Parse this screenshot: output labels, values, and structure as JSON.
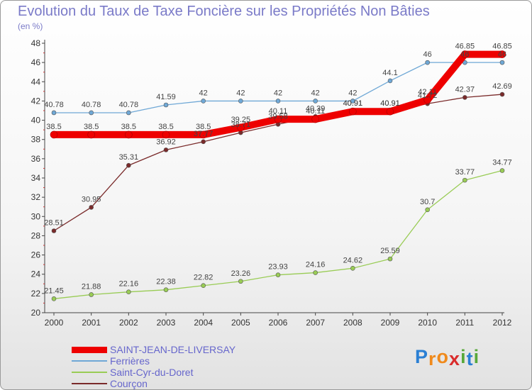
{
  "chart_data": {
    "type": "line",
    "title": "Evolution du Taux de Taxe Foncière sur les Propriétés Non Bâties",
    "subtitle": "(en %)",
    "xlabel": "",
    "ylabel": "",
    "categories": [
      "2000",
      "2001",
      "2002",
      "2003",
      "2004",
      "2005",
      "2006",
      "2007",
      "2008",
      "2009",
      "2010",
      "2011",
      "2012"
    ],
    "ylim": [
      20,
      48
    ],
    "yticks": [
      20,
      22,
      24,
      26,
      28,
      30,
      32,
      34,
      36,
      38,
      40,
      42,
      44,
      46,
      48
    ],
    "grid": false,
    "legend_position": "bottom-left",
    "series": [
      {
        "name": "SAINT-JEAN-DE-LIVERSAY",
        "color": "#ee0000",
        "values": [
          38.5,
          38.5,
          38.5,
          38.5,
          38.5,
          39.25,
          40.11,
          40.11,
          40.91,
          40.91,
          42.11,
          46.85,
          46.85
        ],
        "labels": [
          "38.5",
          "38.5",
          "38.5",
          "38.5",
          "38.5",
          "39.25",
          "40.11",
          "40.11",
          "40.91",
          "40.91",
          "42.11",
          "46.85",
          "46.85"
        ]
      },
      {
        "name": "Ferrières",
        "color": "#6fa8d6",
        "values": [
          40.78,
          40.78,
          40.78,
          41.59,
          42,
          42,
          42,
          42,
          42,
          44.1,
          46,
          46,
          46
        ],
        "labels": [
          "40.78",
          "40.78",
          "40.78",
          "41.59",
          "42",
          "42",
          "42",
          "42",
          "42",
          "44.1",
          "46",
          "46",
          "46"
        ]
      },
      {
        "name": "Saint-Cyr-du-Doret",
        "color": "#99cc55",
        "values": [
          21.45,
          21.88,
          22.16,
          22.38,
          22.82,
          23.26,
          23.93,
          24.16,
          24.62,
          25.59,
          30.7,
          33.77,
          34.77
        ],
        "labels": [
          "21.45",
          "21.88",
          "22.16",
          "22.38",
          "22.82",
          "23.26",
          "23.93",
          "24.16",
          "24.62",
          "25.59",
          "30.7",
          "33.77",
          "34.77"
        ]
      },
      {
        "name": "Courçon",
        "color": "#7a2a2a",
        "values": [
          28.51,
          30.95,
          35.31,
          36.92,
          37.77,
          38.71,
          39.58,
          40.39,
          40.91,
          40.91,
          41.72,
          42.37,
          42.69
        ],
        "labels": [
          "28.51",
          "30.95",
          "35.31",
          "36.92",
          "37.77",
          "38.71",
          "39.58",
          "40.39",
          "40.91",
          "40.91",
          "41.72",
          "42.37",
          "42.69"
        ]
      }
    ]
  },
  "logo": {
    "letters": [
      "P",
      "r",
      "o",
      "x",
      "i",
      "t",
      "i"
    ]
  }
}
